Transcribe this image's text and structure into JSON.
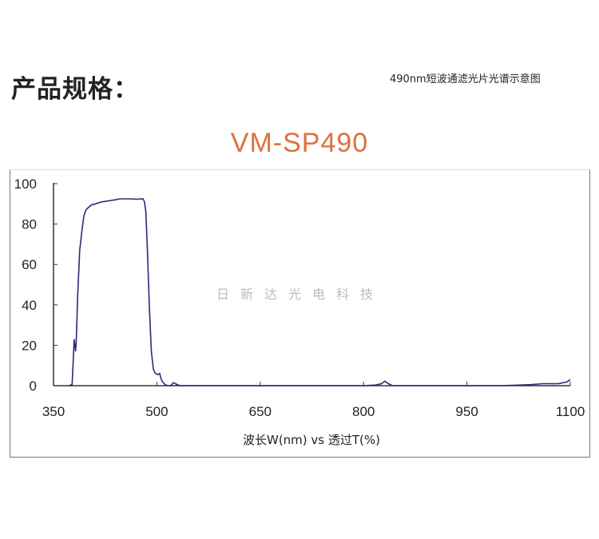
{
  "heading": "产品规格：",
  "caption": "490nm短波通滤光片光谱示意图",
  "title": "VM-SP490",
  "watermark": "日新达光电科技",
  "chart_data": {
    "type": "line",
    "title": "VM-SP490",
    "xlabel": "波长W(nm) vs 透过T(%)",
    "ylabel": "",
    "xlim": [
      350,
      1100
    ],
    "ylim": [
      0,
      100
    ],
    "xticks": [
      350,
      500,
      650,
      800,
      950,
      1100
    ],
    "yticks": [
      0,
      20,
      40,
      60,
      80,
      100
    ],
    "grid": false,
    "line_color": "#2a2a7a",
    "series": [
      {
        "x": [
          372,
          377,
          380,
          381,
          382,
          383,
          385,
          388,
          391,
          394,
          397,
          400,
          405,
          411,
          420,
          430,
          440,
          446,
          460,
          470,
          480,
          482,
          484,
          486,
          487,
          489,
          490,
          492,
          495,
          498,
          501,
          504,
          506,
          508,
          512,
          516,
          520,
          524,
          527,
          531,
          534,
          560,
          600,
          700,
          800,
          818,
          826,
          831,
          836,
          842,
          900,
          1000,
          1043,
          1060,
          1083,
          1095,
          1100
        ],
        "y": [
          0,
          0.5,
          23,
          20,
          17,
          22,
          44,
          67,
          76,
          84,
          87,
          88,
          89.5,
          90,
          91,
          91.5,
          92,
          92.5,
          92.5,
          92.3,
          92.5,
          91,
          86,
          70,
          60,
          40,
          32,
          17,
          8,
          6,
          5.5,
          6,
          3.5,
          2,
          0.5,
          0,
          0,
          1.5,
          1,
          0.3,
          0,
          0,
          0,
          0,
          0,
          0.3,
          1,
          2.2,
          1,
          0,
          0,
          0,
          0.5,
          1,
          1,
          1.8,
          3
        ]
      }
    ]
  }
}
